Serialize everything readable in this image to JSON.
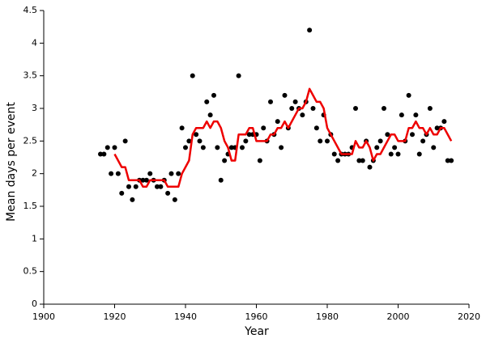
{
  "chart_data": {
    "type": "scatter",
    "xlabel": "Year",
    "ylabel": "Mean days per event",
    "xlim": [
      1900,
      2020
    ],
    "ylim": [
      0,
      4.5
    ],
    "xticks": [
      1900,
      1920,
      1940,
      1960,
      1980,
      2000,
      2020
    ],
    "yticks": [
      0,
      0.5,
      1,
      1.5,
      2,
      2.5,
      3,
      3.5,
      4,
      4.5
    ],
    "grid": false,
    "series": [
      {
        "mode": "markers",
        "color": "#000000",
        "x": [
          1916,
          1917,
          1918,
          1919,
          1920,
          1921,
          1922,
          1923,
          1924,
          1925,
          1926,
          1927,
          1928,
          1929,
          1930,
          1931,
          1932,
          1933,
          1934,
          1935,
          1936,
          1937,
          1938,
          1939,
          1940,
          1941,
          1942,
          1943,
          1944,
          1945,
          1946,
          1947,
          1948,
          1949,
          1950,
          1951,
          1952,
          1953,
          1954,
          1955,
          1956,
          1957,
          1958,
          1959,
          1960,
          1961,
          1962,
          1963,
          1964,
          1965,
          1966,
          1967,
          1968,
          1969,
          1970,
          1971,
          1972,
          1973,
          1974,
          1975,
          1976,
          1977,
          1978,
          1979,
          1980,
          1981,
          1982,
          1983,
          1984,
          1985,
          1986,
          1987,
          1988,
          1989,
          1990,
          1991,
          1992,
          1993,
          1994,
          1995,
          1996,
          1997,
          1998,
          1999,
          2000,
          2001,
          2002,
          2003,
          2004,
          2005,
          2006,
          2007,
          2008,
          2009,
          2010,
          2011,
          2012,
          2013,
          2014,
          2015
        ],
        "values": [
          2.3,
          2.3,
          2.4,
          2.0,
          2.4,
          2.0,
          1.7,
          2.5,
          1.8,
          1.6,
          1.8,
          1.9,
          1.9,
          1.9,
          2.0,
          1.9,
          1.8,
          1.8,
          1.9,
          1.7,
          2.0,
          1.6,
          2.0,
          2.7,
          2.4,
          2.5,
          3.5,
          2.6,
          2.5,
          2.4,
          3.1,
          2.9,
          3.2,
          2.4,
          1.9,
          2.2,
          2.3,
          2.4,
          2.4,
          3.5,
          2.4,
          2.5,
          2.6,
          2.6,
          2.6,
          2.2,
          2.7,
          2.5,
          3.1,
          2.6,
          2.8,
          2.4,
          3.2,
          2.7,
          3.0,
          3.1,
          3.0,
          2.9,
          3.1,
          4.2,
          3.0,
          2.7,
          2.5,
          2.9,
          2.5,
          2.6,
          2.3,
          2.2,
          2.3,
          2.3,
          2.3,
          2.4,
          3.0,
          2.2,
          2.2,
          2.5,
          2.1,
          2.2,
          2.4,
          2.5,
          3.0,
          2.6,
          2.3,
          2.4,
          2.3,
          2.9,
          2.5,
          3.2,
          2.6,
          2.9,
          2.3,
          2.5,
          2.6,
          3.0,
          2.4,
          2.7,
          2.7,
          2.8,
          2.2,
          2.2
        ]
      },
      {
        "mode": "line",
        "color": "#ee0000",
        "x": [
          1920,
          1921,
          1922,
          1923,
          1924,
          1925,
          1926,
          1927,
          1928,
          1929,
          1930,
          1931,
          1932,
          1933,
          1934,
          1935,
          1936,
          1937,
          1938,
          1939,
          1940,
          1941,
          1942,
          1943,
          1944,
          1945,
          1946,
          1947,
          1948,
          1949,
          1950,
          1951,
          1952,
          1953,
          1954,
          1955,
          1956,
          1957,
          1958,
          1959,
          1960,
          1961,
          1962,
          1963,
          1964,
          1965,
          1966,
          1967,
          1968,
          1969,
          1970,
          1971,
          1972,
          1973,
          1974,
          1975,
          1976,
          1977,
          1978,
          1979,
          1980,
          1981,
          1982,
          1983,
          1984,
          1985,
          1986,
          1987,
          1988,
          1989,
          1990,
          1991,
          1992,
          1993,
          1994,
          1995,
          1996,
          1997,
          1998,
          1999,
          2000,
          2001,
          2002,
          2003,
          2004,
          2005,
          2006,
          2007,
          2008,
          2009,
          2010,
          2011,
          2012,
          2013,
          2014,
          2015
        ],
        "values": [
          2.3,
          2.2,
          2.1,
          2.1,
          1.9,
          1.9,
          1.9,
          1.9,
          1.8,
          1.8,
          1.9,
          1.9,
          1.9,
          1.9,
          1.9,
          1.8,
          1.8,
          1.8,
          1.8,
          2.0,
          2.1,
          2.2,
          2.6,
          2.7,
          2.7,
          2.7,
          2.8,
          2.7,
          2.8,
          2.8,
          2.7,
          2.5,
          2.4,
          2.2,
          2.2,
          2.6,
          2.6,
          2.6,
          2.7,
          2.7,
          2.5,
          2.5,
          2.5,
          2.5,
          2.6,
          2.6,
          2.7,
          2.7,
          2.8,
          2.7,
          2.8,
          2.9,
          3.0,
          3.0,
          3.1,
          3.3,
          3.2,
          3.1,
          3.1,
          3.0,
          2.7,
          2.6,
          2.5,
          2.4,
          2.3,
          2.3,
          2.3,
          2.3,
          2.5,
          2.4,
          2.4,
          2.5,
          2.4,
          2.2,
          2.3,
          2.3,
          2.4,
          2.5,
          2.6,
          2.6,
          2.5,
          2.5,
          2.5,
          2.7,
          2.7,
          2.8,
          2.7,
          2.7,
          2.6,
          2.7,
          2.6,
          2.6,
          2.7,
          2.7,
          2.6,
          2.5
        ]
      }
    ]
  }
}
